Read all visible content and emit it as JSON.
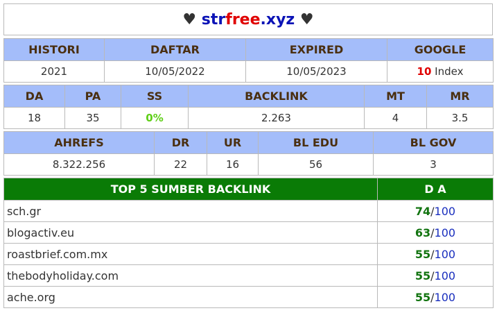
{
  "title": {
    "heart_left": "♥",
    "part1": "str",
    "part2": "free",
    "part3": ".xyz",
    "heart_right": "♥"
  },
  "table1": {
    "headers": [
      "HISTORI",
      "DAFTAR",
      "EXPIRED",
      "GOOGLE"
    ],
    "values": [
      "2021",
      "10/05/2022",
      "10/05/2023"
    ],
    "google_count": "10",
    "google_suffix": " Index"
  },
  "table2": {
    "headers": [
      "DA",
      "PA",
      "SS",
      "BACKLINK",
      "MT",
      "MR"
    ],
    "values": [
      "18",
      "35",
      "0%",
      "2.263",
      "4",
      "3.5"
    ]
  },
  "table3": {
    "headers": [
      "AHREFS",
      "DR",
      "UR",
      "BL EDU",
      "BL GOV"
    ],
    "values": [
      "8.322.256",
      "22",
      "16",
      "56",
      "3"
    ]
  },
  "backlinks": {
    "header_left": "TOP 5 SUMBER BACKLINK",
    "header_right": "D A",
    "rows": [
      {
        "domain": "sch.gr",
        "da": "74",
        "sep": "/",
        "max": "100"
      },
      {
        "domain": "blogactiv.eu",
        "da": "63",
        "sep": "/",
        "max": "100"
      },
      {
        "domain": "roastbrief.com.mx",
        "da": "55",
        "sep": "/",
        "max": "100"
      },
      {
        "domain": "thebodyholiday.com",
        "da": "55",
        "sep": "/",
        "max": "100"
      },
      {
        "domain": "ache.org",
        "da": "55",
        "sep": "/",
        "max": "100"
      }
    ]
  },
  "colors": {
    "header_bg": "#a4bdfa",
    "green_bar": "#0a7b06",
    "accent_red": "#e00000",
    "accent_blue": "#0b13b6"
  }
}
